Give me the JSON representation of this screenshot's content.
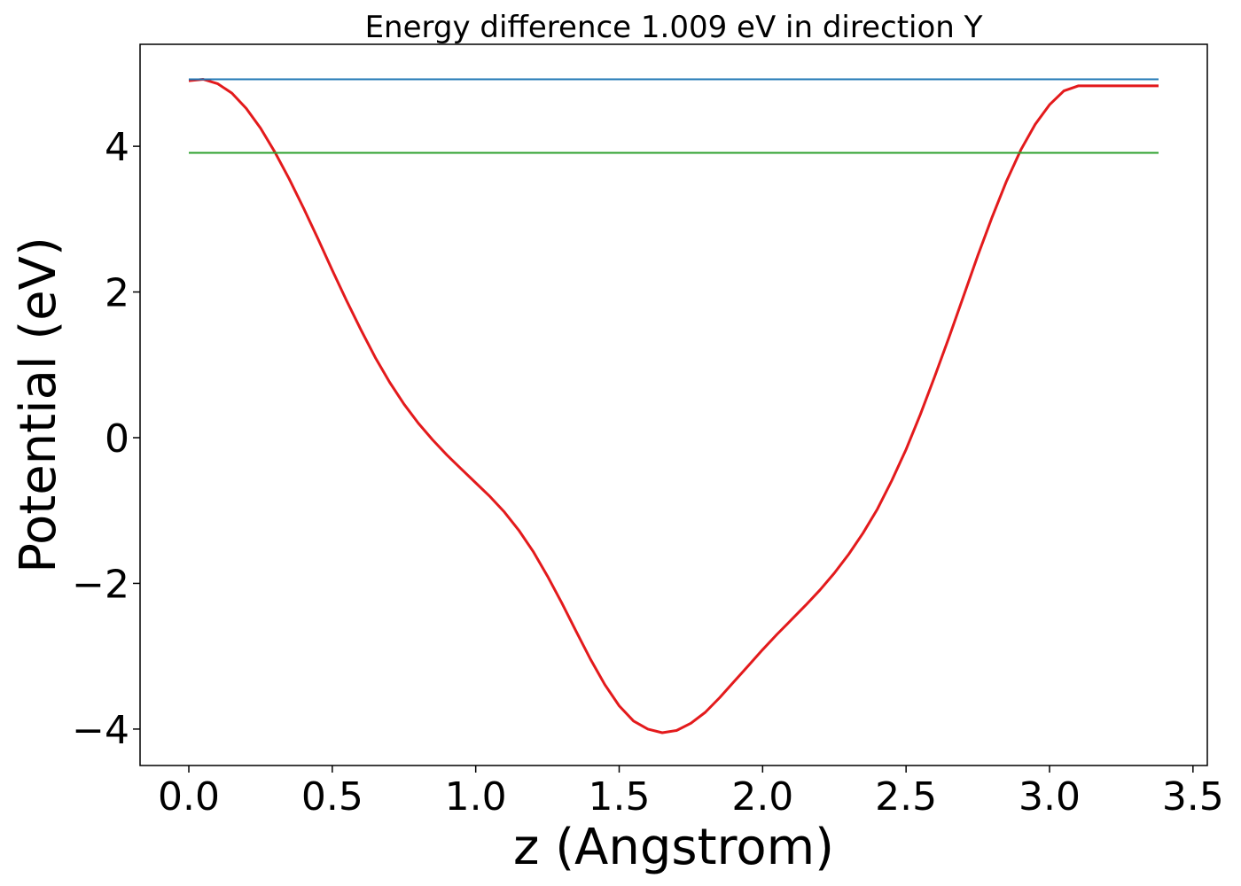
{
  "chart_data": {
    "type": "line",
    "title": "Energy difference 1.009 eV in direction Y",
    "xlabel": "z (Angstrom)",
    "ylabel": "Potential (eV)",
    "xlim": [
      -0.17,
      3.55
    ],
    "ylim": [
      -4.5,
      5.4
    ],
    "xticks": [
      0.0,
      0.5,
      1.0,
      1.5,
      2.0,
      2.5,
      3.0,
      3.5
    ],
    "xtick_labels": [
      "0.0",
      "0.5",
      "1.0",
      "1.5",
      "2.0",
      "2.5",
      "3.0",
      "3.5"
    ],
    "yticks": [
      -4,
      -2,
      0,
      2,
      4
    ],
    "ytick_labels": [
      "−4",
      "−2",
      "0",
      "2",
      "4"
    ],
    "grid": false,
    "series": [
      {
        "name": "potential",
        "color": "#e31a1c",
        "x": [
          0.0,
          0.05,
          0.1,
          0.15,
          0.2,
          0.25,
          0.3,
          0.35,
          0.4,
          0.45,
          0.5,
          0.55,
          0.6,
          0.65,
          0.7,
          0.75,
          0.8,
          0.85,
          0.9,
          0.95,
          1.0,
          1.05,
          1.1,
          1.15,
          1.2,
          1.25,
          1.3,
          1.35,
          1.4,
          1.45,
          1.5,
          1.55,
          1.6,
          1.65,
          1.7,
          1.75,
          1.8,
          1.85,
          1.9,
          1.95,
          2.0,
          2.05,
          2.1,
          2.15,
          2.2,
          2.25,
          2.3,
          2.35,
          2.4,
          2.45,
          2.5,
          2.55,
          2.6,
          2.65,
          2.7,
          2.75,
          2.8,
          2.85,
          2.9,
          2.95,
          3.0,
          3.05,
          3.1,
          3.15,
          3.2,
          3.25,
          3.3,
          3.35,
          3.38
        ],
        "y": [
          4.9,
          4.92,
          4.86,
          4.73,
          4.52,
          4.25,
          3.92,
          3.55,
          3.15,
          2.73,
          2.3,
          1.88,
          1.48,
          1.1,
          0.76,
          0.46,
          0.2,
          -0.03,
          -0.24,
          -0.43,
          -0.62,
          -0.81,
          -1.02,
          -1.27,
          -1.56,
          -1.9,
          -2.27,
          -2.66,
          -3.04,
          -3.39,
          -3.68,
          -3.89,
          -4.0,
          -4.05,
          -4.02,
          -3.92,
          -3.77,
          -3.57,
          -3.35,
          -3.13,
          -2.91,
          -2.7,
          -2.5,
          -2.3,
          -2.09,
          -1.86,
          -1.6,
          -1.31,
          -0.98,
          -0.59,
          -0.16,
          0.32,
          0.84,
          1.38,
          1.94,
          2.5,
          3.03,
          3.52,
          3.95,
          4.3,
          4.57,
          4.76,
          4.83,
          4.83,
          4.83,
          4.83,
          4.83,
          4.83,
          4.83
        ]
      },
      {
        "name": "upper-level",
        "color": "#1f77b4",
        "x": [
          0.0,
          3.38
        ],
        "y": [
          4.92,
          4.92
        ]
      },
      {
        "name": "lower-level",
        "color": "#2ca02c",
        "x": [
          0.0,
          3.38
        ],
        "y": [
          3.91,
          3.91
        ]
      }
    ]
  }
}
